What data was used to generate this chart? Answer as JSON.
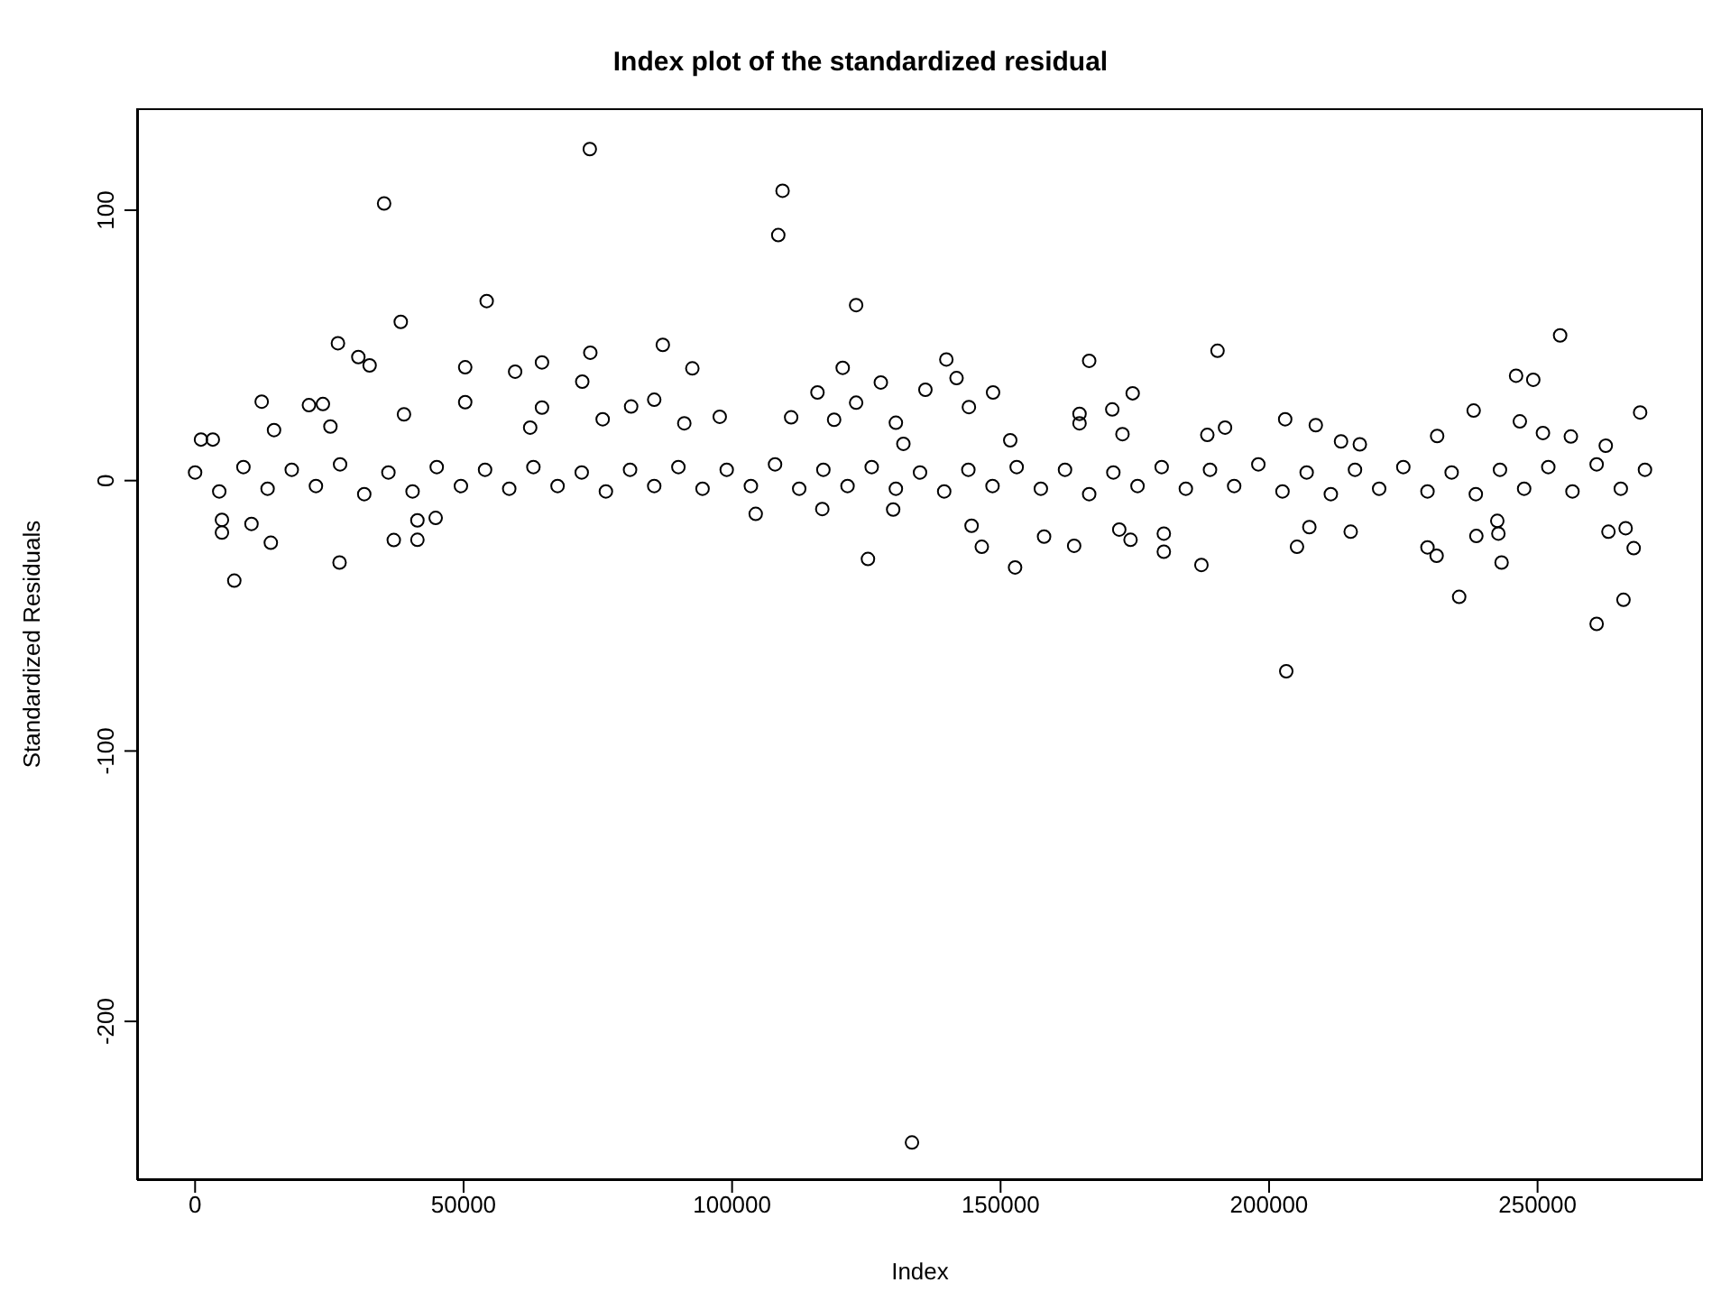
{
  "chart_data": {
    "type": "scatter",
    "title": "Index plot of the standardized residual",
    "xlabel": "Index",
    "ylabel": "Standardized Residuals",
    "xlim": [
      -10800,
      280800
    ],
    "ylim": [
      -258.7,
      137.7
    ],
    "xticks": [
      0,
      50000,
      100000,
      150000,
      200000,
      250000
    ],
    "yticks": [
      -200,
      -100,
      0,
      100
    ],
    "marker": "circle",
    "series": [
      {
        "color": "#000000",
        "x": [
          73500,
          35200,
          109400,
          108600,
          54300,
          123100,
          38300,
          26600,
          30400,
          32500,
          87100,
          73600,
          72100,
          50300,
          59600,
          64600,
          92600,
          120600,
          127700,
          115900,
          12400,
          50300,
          21200,
          23800,
          85500,
          123100,
          38900,
          64600,
          81200,
          14700,
          1100,
          3300,
          25200,
          62400,
          97700,
          111000,
          130500,
          131900,
          75900,
          91100,
          119000,
          254200,
          190400,
          139900,
          166500,
          141800,
          136000,
          148600,
          174600,
          144100,
          246000,
          249200,
          269100,
          238100,
          170800,
          164700,
          164700,
          203000,
          208700,
          172700,
          188500,
          191800,
          231300,
          246700,
          256200,
          251000,
          151800,
          213400,
          216900,
          262700,
          7300,
          26900,
          14100,
          37000,
          41400,
          5000,
          125300,
          104400,
          116800,
          130000,
          44800,
          10500,
          5000,
          41400,
          133500,
          203200,
          261000,
          266000,
          235400,
          152700,
          187400,
          243300,
          146500,
          180400,
          205200,
          231200,
          229500,
          267900,
          144600,
          163700,
          158100,
          174200,
          180400,
          238600,
          242700,
          263200,
          266400,
          207500,
          215200,
          172100,
          242500,
          0,
          4500,
          9000,
          13500,
          18000,
          22500,
          27000,
          31500,
          36000,
          40500,
          45000,
          49500,
          54000,
          58500,
          63000,
          67500,
          72000,
          76500,
          81000,
          85500,
          90000,
          94500,
          99000,
          103500,
          108000,
          112500,
          117000,
          121500,
          126000,
          130500,
          135000,
          139500,
          144000,
          148500,
          153000,
          157500,
          162000,
          166500,
          171000,
          175500,
          180000,
          184500,
          189000,
          193500,
          198000,
          202500,
          207000,
          211500,
          216000,
          220500,
          225000,
          229500,
          234000,
          238500,
          243000,
          247500,
          252000,
          256500,
          261000,
          265500,
          270000
        ],
        "values": [
          122.6,
          102.5,
          107.2,
          90.8,
          66.4,
          64.9,
          58.7,
          50.8,
          45.7,
          42.6,
          50.2,
          47.3,
          36.6,
          41.9,
          40.3,
          43.7,
          41.5,
          41.7,
          36.3,
          32.6,
          29.2,
          29,
          27.9,
          28.3,
          29.9,
          28.8,
          24.5,
          27,
          27.4,
          18.7,
          15.2,
          15.2,
          20,
          19.6,
          23.6,
          23.4,
          21.4,
          13.6,
          22.7,
          21.2,
          22.5,
          53.7,
          48,
          44.8,
          44.3,
          37.9,
          33.6,
          32.6,
          32.3,
          27.2,
          38.8,
          37.3,
          25.2,
          25.9,
          26.3,
          24.7,
          21.2,
          22.7,
          20.5,
          17.2,
          16.9,
          19.6,
          16.5,
          21.9,
          16.3,
          17.6,
          14.9,
          14.5,
          13.4,
          12.9,
          -37,
          -30.3,
          -23,
          -22,
          -21.9,
          -19.2,
          -29,
          -12.3,
          -10.5,
          -10.7,
          -13.8,
          -16,
          -14.5,
          -14.7,
          -244.8,
          -70.5,
          -53,
          -44.1,
          -43,
          -32.1,
          -31.2,
          -30.3,
          -24.5,
          -26.3,
          -24.5,
          -27.8,
          -24.7,
          -25,
          -16.7,
          -24.1,
          -20.7,
          -21.9,
          -19.6,
          -20.5,
          -19.6,
          -18.9,
          -17.6,
          -17.2,
          -18.9,
          -18.1,
          -14.9,
          3,
          -4,
          5,
          -3,
          4,
          -2,
          6,
          -5,
          3,
          -4,
          5,
          -2,
          4,
          -3,
          5,
          -2,
          3,
          -4,
          4,
          -2,
          5,
          -3,
          4,
          -2,
          6,
          -3,
          4,
          -2,
          5,
          -3,
          3,
          -4,
          4,
          -2,
          5,
          -3,
          4,
          -5,
          3,
          -2,
          5,
          -3,
          4,
          -2,
          6,
          -4,
          3,
          -5,
          4,
          -3,
          5,
          -4,
          3,
          -5,
          4,
          -3,
          5,
          -4,
          6,
          -3,
          4
        ]
      }
    ]
  }
}
